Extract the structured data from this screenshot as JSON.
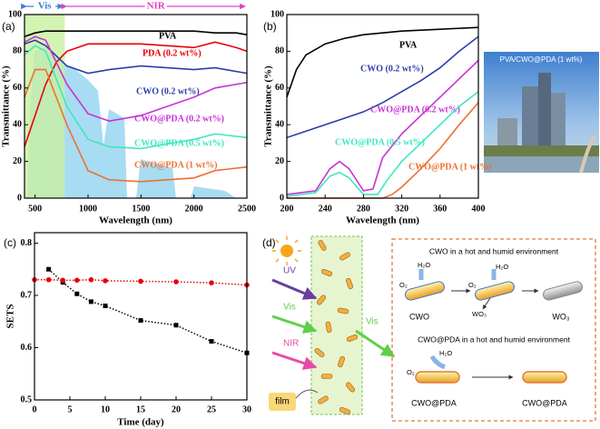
{
  "chart_data": [
    {
      "type": "line",
      "panel_label": "(a)",
      "x_label": "Wavelength (nm)",
      "y_label": "Transmittance (%)",
      "xlim": [
        400,
        2500
      ],
      "xticks": [
        500,
        1000,
        1500,
        2000,
        2500
      ],
      "ylim": [
        0,
        100
      ],
      "yticks": [
        0,
        20,
        40,
        60,
        80,
        100
      ],
      "regions": [
        {
          "label": "Vis",
          "range": [
            400,
            780
          ],
          "color": "#3a7fd5",
          "shaded": true
        },
        {
          "label": "NIR",
          "range": [
            780,
            2500
          ],
          "color": "#e040c0",
          "shaded": false
        }
      ],
      "series": [
        {
          "name": "PVA",
          "color": "#000000",
          "x": [
            400,
            500,
            600,
            800,
            1000,
            1200,
            1500,
            1800,
            2000,
            2200,
            2400,
            2500
          ],
          "values": [
            88,
            90,
            91,
            91,
            91,
            91,
            91,
            91,
            91,
            90,
            90,
            89
          ]
        },
        {
          "name": "PDA (0.2 wt%)",
          "color": "#e8000b",
          "x": [
            400,
            500,
            600,
            700,
            800,
            1000,
            1200,
            1500,
            2000,
            2200,
            2400,
            2500
          ],
          "values": [
            28,
            45,
            62,
            74,
            80,
            84,
            84,
            84,
            82,
            85,
            82,
            80
          ]
        },
        {
          "name": "CWO (0.2 wt%)",
          "color": "#2b3ea8",
          "x": [
            400,
            500,
            600,
            800,
            1000,
            1200,
            1500,
            2000,
            2200,
            2500
          ],
          "values": [
            84,
            86,
            83,
            72,
            68,
            70,
            72,
            70,
            71,
            68
          ]
        },
        {
          "name": "CWO@PDA (0.2 wt%)",
          "color": "#c732d6",
          "x": [
            400,
            500,
            600,
            800,
            1000,
            1200,
            1500,
            2000,
            2200,
            2500
          ],
          "values": [
            85,
            88,
            86,
            62,
            46,
            42,
            45,
            55,
            60,
            63
          ]
        },
        {
          "name": "CWO@PDA (0.5 wt%)",
          "color": "#3ee8c0",
          "x": [
            400,
            500,
            600,
            800,
            1000,
            1200,
            1500,
            2000,
            2200,
            2500
          ],
          "values": [
            78,
            83,
            80,
            50,
            32,
            28,
            27,
            32,
            35,
            33
          ]
        },
        {
          "name": "CWO@PDA (1 wt%)",
          "color": "#f07030",
          "x": [
            400,
            500,
            600,
            800,
            1000,
            1200,
            1500,
            2000,
            2200,
            2500
          ],
          "values": [
            55,
            70,
            70,
            40,
            15,
            10,
            9,
            11,
            15,
            17
          ]
        }
      ]
    },
    {
      "type": "line",
      "panel_label": "(b)",
      "x_label": "Wavelength (nm)",
      "y_label": "Transmittance (%)",
      "xlim": [
        200,
        400
      ],
      "xticks": [
        200,
        240,
        280,
        320,
        360,
        400
      ],
      "ylim": [
        0,
        100
      ],
      "yticks": [
        0,
        20,
        40,
        60,
        80,
        100
      ],
      "series": [
        {
          "name": "PVA",
          "color": "#000000",
          "x": [
            200,
            210,
            220,
            240,
            260,
            280,
            300,
            320,
            360,
            400
          ],
          "values": [
            55,
            70,
            78,
            84,
            87,
            89,
            90,
            91,
            92,
            93
          ]
        },
        {
          "name": "CWO (0.2 wt%)",
          "color": "#2b3ea8",
          "x": [
            200,
            240,
            280,
            300,
            320,
            340,
            360,
            380,
            400
          ],
          "values": [
            33,
            40,
            47,
            52,
            58,
            64,
            71,
            80,
            88
          ]
        },
        {
          "name": "CWO@PDA (0.2 wt%)",
          "color": "#c732d6",
          "x": [
            200,
            230,
            245,
            255,
            265,
            280,
            290,
            300,
            320,
            340,
            360,
            380,
            400
          ],
          "values": [
            2,
            4,
            16,
            20,
            16,
            4,
            5,
            22,
            35,
            45,
            55,
            65,
            75
          ]
        },
        {
          "name": "CWO@PDA (0.5 wt%)",
          "color": "#3ee8c0",
          "x": [
            200,
            230,
            245,
            255,
            265,
            280,
            295,
            305,
            320,
            340,
            360,
            380,
            400
          ],
          "values": [
            1,
            3,
            12,
            14,
            11,
            2,
            2,
            10,
            20,
            30,
            40,
            50,
            58
          ]
        },
        {
          "name": "CWO@PDA (1 wt%)",
          "color": "#f07030",
          "x": [
            200,
            300,
            310,
            320,
            340,
            360,
            380,
            400
          ],
          "values": [
            0,
            0,
            2,
            6,
            16,
            27,
            40,
            52
          ]
        }
      ]
    },
    {
      "type": "line",
      "panel_label": "(c)",
      "x_label": "Time (day)",
      "y_label": "SETS",
      "xlim": [
        0,
        30
      ],
      "xticks": [
        0,
        5,
        10,
        15,
        20,
        25,
        30
      ],
      "ylim": [
        0.5,
        0.82
      ],
      "yticks": [
        0.5,
        0.6,
        0.7,
        0.8
      ],
      "series": [
        {
          "color": "#000000",
          "marker": "square",
          "linestyle": "dotted",
          "x": [
            2,
            4,
            6,
            8,
            10,
            15,
            20,
            25,
            30
          ],
          "values": [
            0.75,
            0.725,
            0.703,
            0.688,
            0.68,
            0.652,
            0.643,
            0.612,
            0.59
          ]
        },
        {
          "color": "#e8000b",
          "marker": "circle",
          "linestyle": "dotted",
          "x": [
            0,
            2,
            4,
            6,
            8,
            10,
            15,
            20,
            25,
            30
          ],
          "values": [
            0.73,
            0.73,
            0.729,
            0.729,
            0.73,
            0.728,
            0.727,
            0.726,
            0.724,
            0.72
          ]
        }
      ]
    }
  ],
  "photo": {
    "caption": "PVA/CWO@PDA (1 wt%)"
  },
  "diagram": {
    "panel_label": "(d)",
    "inputs": [
      "UV",
      "Vis",
      "NIR"
    ],
    "film": "film",
    "output": "Vis",
    "cwo": {
      "title": "CWO in a hot and humid environment",
      "water": [
        "H₂O",
        "H₂O"
      ],
      "oxygen": [
        "O₂",
        "O₂"
      ],
      "release": "WO₃",
      "labels": [
        "CWO",
        "WO₃"
      ]
    },
    "cwo_pda": {
      "title": "CWO@PDA in a hot and humid environment",
      "water": "H₂O",
      "oxygen": "O₂",
      "labels": [
        "CWO@PDA",
        "CWO@PDA"
      ]
    }
  }
}
